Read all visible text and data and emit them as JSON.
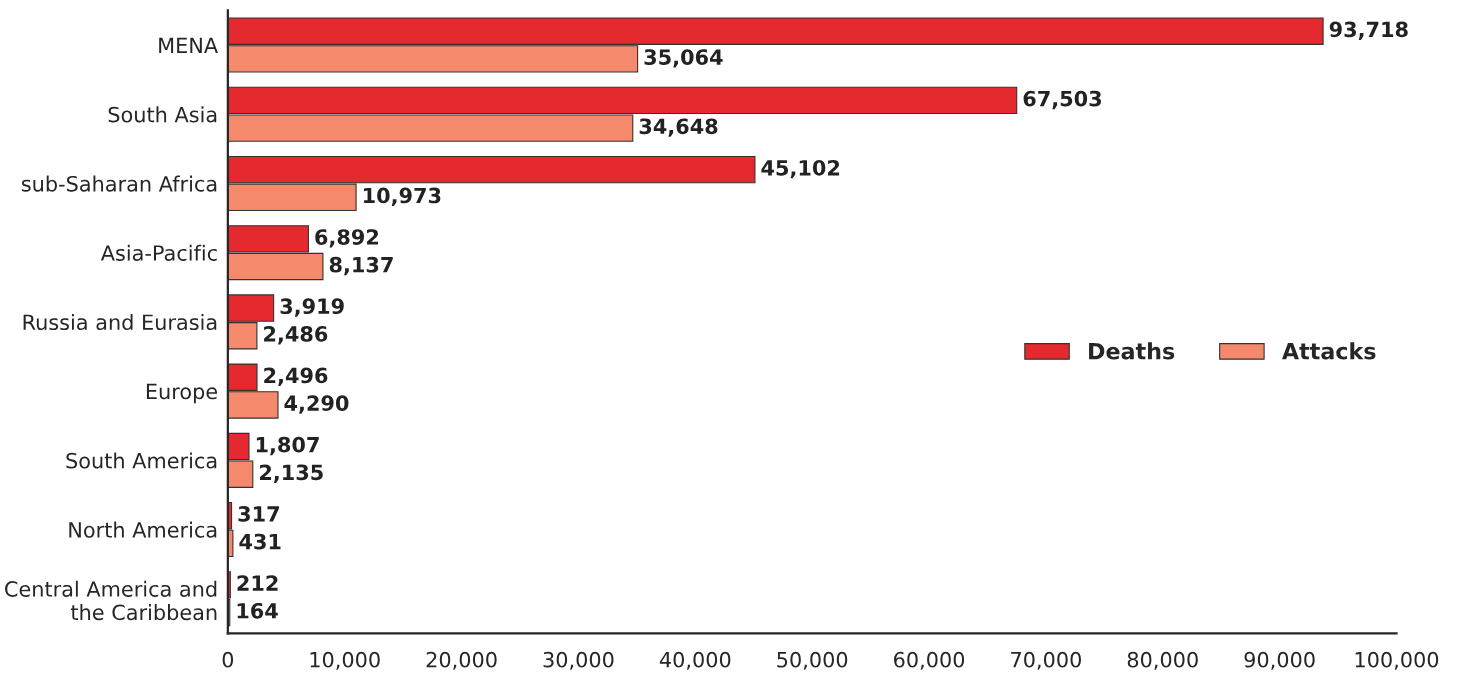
{
  "chart_data": {
    "type": "bar",
    "orientation": "horizontal",
    "legend": "right",
    "grid": false,
    "categories": [
      "MENA",
      "South Asia",
      "sub-Saharan Africa",
      "Asia-Pacific",
      "Russia and Eurasia",
      "Europe",
      "South America",
      "North America",
      "Central America and\nthe Caribbean"
    ],
    "series": [
      {
        "name": "Deaths",
        "color": "#e52a2f",
        "values": [
          93718,
          67503,
          45102,
          6892,
          3919,
          2496,
          1807,
          317,
          212
        ],
        "value_labels": [
          "93,718",
          "67,503",
          "45,102",
          "6,892",
          "3,919",
          "2,496",
          "1,807",
          "317",
          "212"
        ]
      },
      {
        "name": "Attacks",
        "color": "#f4896c",
        "values": [
          35064,
          34648,
          10973,
          8137,
          2486,
          4290,
          2135,
          431,
          164
        ],
        "value_labels": [
          "35,064",
          "34,648",
          "10,973",
          "8,137",
          "2,486",
          "4,290",
          "2,135",
          "431",
          "164"
        ]
      }
    ],
    "xlim": [
      0,
      100000
    ],
    "xticks": [
      0,
      {
        "value": 10000,
        "label": "10,000"
      },
      {
        "value": 20000,
        "label": "20,000"
      },
      {
        "value": 30000,
        "label": "30,000"
      },
      {
        "value": 40000,
        "label": "40,000"
      },
      {
        "value": 50000,
        "label": "50,000"
      },
      {
        "value": 60000,
        "label": "60,000"
      },
      {
        "value": 70000,
        "label": "70,000"
      },
      {
        "value": 80000,
        "label": "80,000"
      },
      {
        "value": 90000,
        "label": "90,000"
      },
      {
        "value": 100000,
        "label": "100,000"
      }
    ]
  }
}
